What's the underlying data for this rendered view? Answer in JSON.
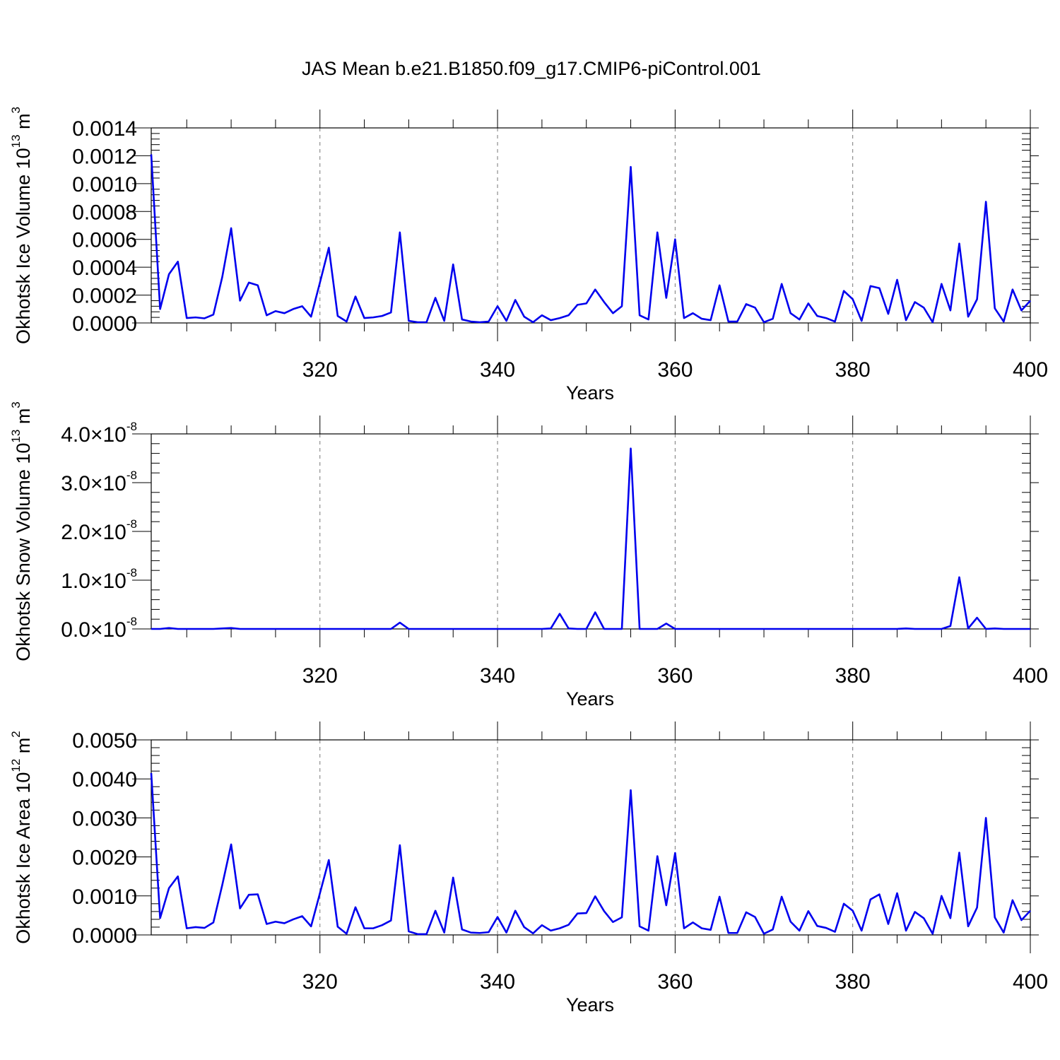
{
  "title": "JAS Mean b.e21.B1850.f09_g17.CMIP6-piControl.001",
  "colors": {
    "series": "#0000ee",
    "axis": "#000000",
    "grid": "#777777"
  },
  "chart_data": [
    {
      "type": "line",
      "ylabel": {
        "main": "Okhotsk Ice Volume 10",
        "exp": "13",
        "unit": " m",
        "unit_exp": "3"
      },
      "xlabel": "Years",
      "xlim": [
        301,
        400
      ],
      "ylim": [
        0,
        0.0014
      ],
      "yticks": [
        0,
        0.0002,
        0.0004,
        0.0006,
        0.0008,
        0.001,
        0.0012,
        0.0014
      ],
      "ytick_labels": [
        "0.0000",
        "0.0002",
        "0.0004",
        "0.0006",
        "0.0008",
        "0.0010",
        "0.0012",
        "0.0014"
      ],
      "xticks": [
        320,
        340,
        360,
        380,
        400
      ],
      "xtick_labels": [
        "320",
        "340",
        "360",
        "380",
        "400"
      ],
      "grid": "vertical dashed at major x ticks",
      "x_start": 301,
      "values": [
        0.00121,
        0.0001,
        0.00035,
        0.00044,
        3.5e-05,
        4e-05,
        3.3e-05,
        6e-05,
        0.00033,
        0.00068,
        0.00016,
        0.00029,
        0.00027,
        5.5e-05,
        8.5e-05,
        7e-05,
        0.0001,
        0.00012,
        4.5e-05,
        0.00029,
        0.00054,
        5e-05,
        1e-05,
        0.00019,
        3.5e-05,
        4e-05,
        5e-05,
        7.5e-05,
        0.00065,
        1.5e-05,
        5e-06,
        5e-06,
        0.00018,
        1.5e-05,
        0.00042,
        2.5e-05,
        1e-05,
        5e-06,
        1e-05,
        0.00012,
        1.5e-05,
        0.000165,
        4.5e-05,
        5e-06,
        5.5e-05,
        2e-05,
        3.5e-05,
        5.5e-05,
        0.00013,
        0.00014,
        0.00024,
        0.00015,
        7e-05,
        0.00012,
        0.00112,
        5.5e-05,
        2.5e-05,
        0.00065,
        0.00018,
        0.0006,
        3.5e-05,
        7e-05,
        3e-05,
        2e-05,
        0.00027,
        1e-05,
        1e-05,
        0.000135,
        0.00011,
        5e-06,
        3e-05,
        0.00028,
        7e-05,
        2.5e-05,
        0.00014,
        5e-05,
        3.5e-05,
        1e-05,
        0.00023,
        0.00017,
        1.5e-05,
        0.000265,
        0.00025,
        6.5e-05,
        0.00031,
        2e-05,
        0.00015,
        0.00011,
        5e-06,
        0.00028,
        9e-05,
        0.00057,
        4.5e-05,
        0.00017,
        0.00087,
        0.000105,
        1e-05,
        0.00024,
        9e-05,
        0.00016
      ]
    },
    {
      "type": "line",
      "ylabel": {
        "main": "Okhotsk Snow Volume 10",
        "exp": "13",
        "unit": " m",
        "unit_exp": "3"
      },
      "xlabel": "Years",
      "xlim": [
        301,
        400
      ],
      "ylim": [
        0,
        4e-08
      ],
      "yticks": [
        0,
        1e-08,
        2e-08,
        3e-08,
        4e-08
      ],
      "ytick_labels": [
        {
          "mant": "0.0",
          "times": "×",
          "base": "10",
          "exp": "-8"
        },
        {
          "mant": "1.0",
          "times": "×",
          "base": "10",
          "exp": "-8"
        },
        {
          "mant": "2.0",
          "times": "×",
          "base": "10",
          "exp": "-8"
        },
        {
          "mant": "3.0",
          "times": "×",
          "base": "10",
          "exp": "-8"
        },
        {
          "mant": "4.0",
          "times": "×",
          "base": "10",
          "exp": "-8"
        }
      ],
      "xticks": [
        320,
        340,
        360,
        380,
        400
      ],
      "xtick_labels": [
        "320",
        "340",
        "360",
        "380",
        "400"
      ],
      "grid": "vertical dashed at major x ticks",
      "x_start": 301,
      "values": [
        0,
        0,
        2e-10,
        0,
        0,
        0,
        0,
        0,
        1e-10,
        2e-10,
        0,
        0,
        0,
        0,
        0,
        0,
        0,
        0,
        0,
        0,
        0,
        0,
        0,
        0,
        0,
        0,
        0,
        0,
        1.3e-09,
        0,
        0,
        0,
        0,
        0,
        0,
        0,
        0,
        0,
        0,
        0,
        0,
        0,
        0,
        0,
        0,
        1e-10,
        3.1e-09,
        1e-10,
        0,
        0,
        3.4e-09,
        0,
        0,
        0,
        3.7e-08,
        0,
        0,
        0,
        1.1e-09,
        0,
        0,
        0,
        0,
        0,
        0,
        0,
        0,
        0,
        0,
        0,
        0,
        0,
        0,
        0,
        0,
        0,
        0,
        0,
        0,
        0,
        0,
        0,
        0,
        0,
        0,
        1e-10,
        0,
        0,
        0,
        0,
        6e-10,
        1.06e-08,
        1e-10,
        2.3e-09,
        0,
        1e-10,
        0,
        0,
        0,
        0
      ]
    },
    {
      "type": "line",
      "ylabel": {
        "main": "Okhotsk Ice Area 10",
        "exp": "12",
        "unit": " m",
        "unit_exp": "2"
      },
      "xlabel": "Years",
      "xlim": [
        301,
        400
      ],
      "ylim": [
        0,
        0.005
      ],
      "yticks": [
        0,
        0.001,
        0.002,
        0.003,
        0.004,
        0.005
      ],
      "ytick_labels": [
        "0.0000",
        "0.0010",
        "0.0020",
        "0.0030",
        "0.0040",
        "0.0050"
      ],
      "xticks": [
        320,
        340,
        360,
        380,
        400
      ],
      "xtick_labels": [
        "320",
        "340",
        "360",
        "380",
        "400"
      ],
      "grid": "vertical dashed at major x ticks",
      "x_start": 301,
      "values": [
        0.00415,
        0.00043,
        0.0012,
        0.0015,
        0.00017,
        0.0002,
        0.00018,
        0.00032,
        0.00128,
        0.00232,
        0.00068,
        0.00103,
        0.00104,
        0.00028,
        0.00034,
        0.0003,
        0.0004,
        0.00048,
        0.00022,
        0.00107,
        0.00192,
        0.00021,
        3e-05,
        0.00071,
        0.00017,
        0.00017,
        0.00025,
        0.00037,
        0.0023,
        9e-05,
        2e-05,
        2e-05,
        0.00062,
        6e-05,
        0.00147,
        0.00014,
        6e-05,
        5e-05,
        7e-05,
        0.00046,
        6e-05,
        0.00062,
        0.0002,
        4e-05,
        0.00025,
        0.00011,
        0.00017,
        0.00026,
        0.00055,
        0.00056,
        0.00099,
        0.00061,
        0.00033,
        0.00045,
        0.00371,
        0.00022,
        0.00011,
        0.00202,
        0.00076,
        0.0021,
        0.00017,
        0.00032,
        0.00017,
        0.00013,
        0.00098,
        5e-05,
        5e-05,
        0.00058,
        0.00046,
        3e-05,
        0.00014,
        0.00098,
        0.00034,
        0.00011,
        0.00061,
        0.00023,
        0.00018,
        8e-05,
        0.0008,
        0.00062,
        0.00011,
        0.00091,
        0.00104,
        0.00028,
        0.00107,
        0.00011,
        0.00059,
        0.00043,
        3e-05,
        0.001,
        0.00043,
        0.00211,
        0.00022,
        0.0007,
        0.003,
        0.00045,
        6e-05,
        0.00089,
        0.00038,
        0.00062
      ]
    }
  ]
}
